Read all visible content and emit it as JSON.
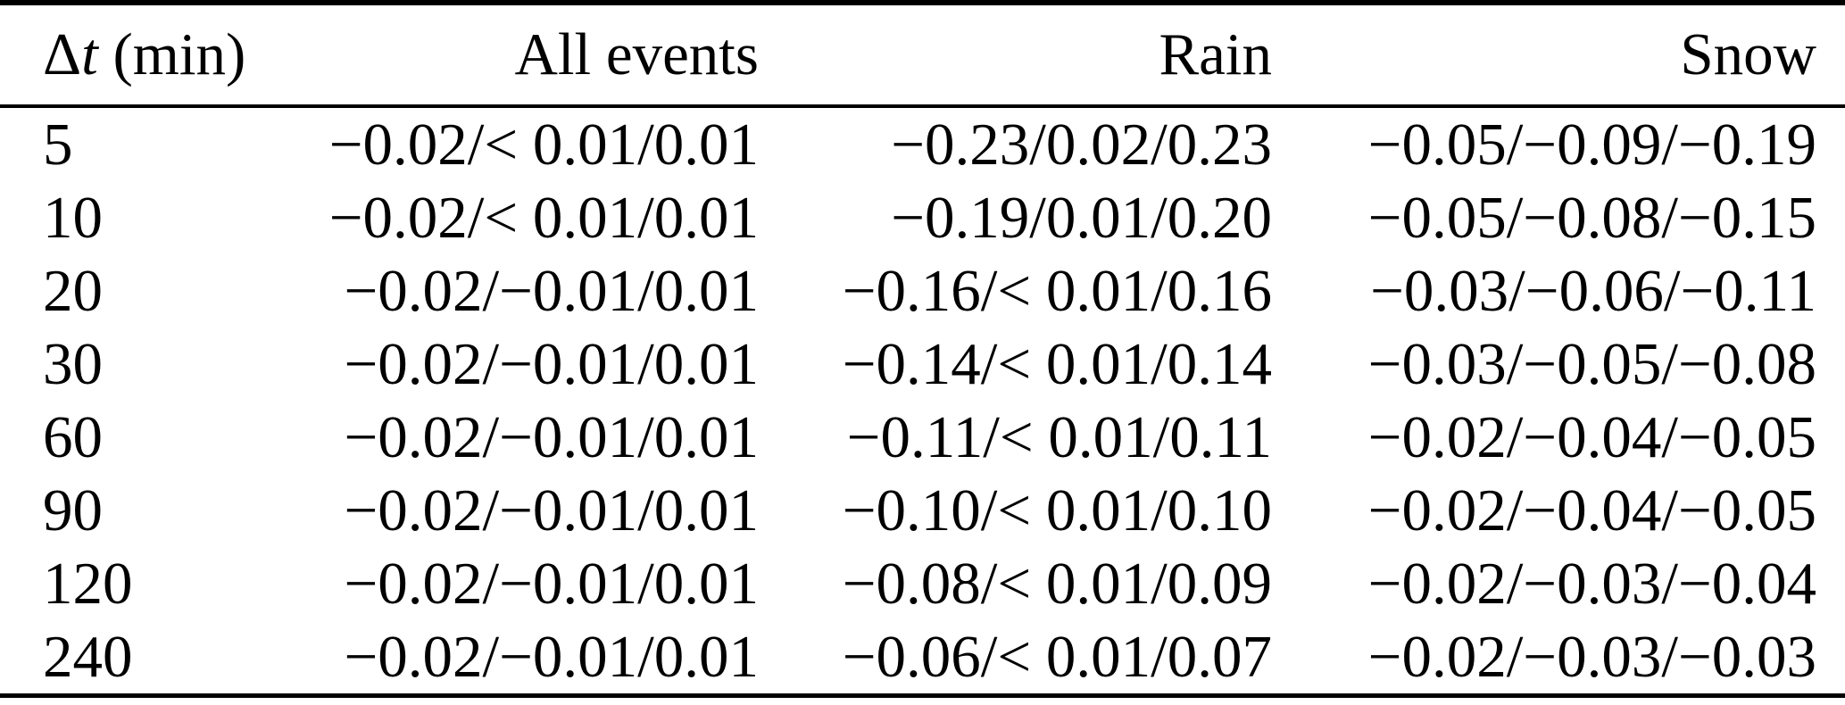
{
  "table": {
    "header": {
      "dt_symbol": "Δ",
      "dt_var": "t",
      "dt_unit": " (min)",
      "all_events": "All events",
      "rain": "Rain",
      "snow": "Snow"
    },
    "rows": [
      {
        "dt": "5",
        "all": "−0.02/< 0.01/0.01",
        "rain": "−0.23/0.02/0.23",
        "snow": "−0.05/−0.09/−0.19"
      },
      {
        "dt": "10",
        "all": "−0.02/< 0.01/0.01",
        "rain": "−0.19/0.01/0.20",
        "snow": "−0.05/−0.08/−0.15"
      },
      {
        "dt": "20",
        "all": "−0.02/−0.01/0.01",
        "rain": "−0.16/< 0.01/0.16",
        "snow": "−0.03/−0.06/−0.11"
      },
      {
        "dt": "30",
        "all": "−0.02/−0.01/0.01",
        "rain": "−0.14/< 0.01/0.14",
        "snow": "−0.03/−0.05/−0.08"
      },
      {
        "dt": "60",
        "all": "−0.02/−0.01/0.01",
        "rain": "−0.11/< 0.01/0.11",
        "snow": "−0.02/−0.04/−0.05"
      },
      {
        "dt": "90",
        "all": "−0.02/−0.01/0.01",
        "rain": "−0.10/< 0.01/0.10",
        "snow": "−0.02/−0.04/−0.05"
      },
      {
        "dt": "120",
        "all": "−0.02/−0.01/0.01",
        "rain": "−0.08/< 0.01/0.09",
        "snow": "−0.02/−0.03/−0.04"
      },
      {
        "dt": "240",
        "all": "−0.02/−0.01/0.01",
        "rain": "−0.06/< 0.01/0.07",
        "snow": "−0.02/−0.03/−0.03"
      }
    ]
  },
  "colors": {
    "text": "#000000",
    "background": "#ffffff",
    "rule": "#000000"
  }
}
